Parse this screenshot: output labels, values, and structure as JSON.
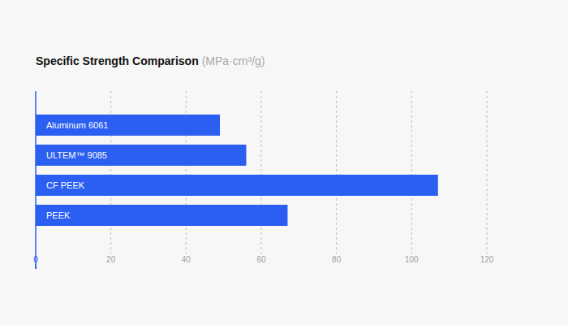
{
  "chart_data": {
    "type": "bar",
    "title": "Specific Strength Comparison",
    "subtitle": "(MPa·cm³/g)",
    "categories": [
      "Aluminum 6061",
      "ULTEM™ 9085",
      "CF PEEK",
      "PEEK"
    ],
    "values": [
      49,
      56,
      107,
      67
    ],
    "color": "#2a5ff2",
    "orientation": "horizontal",
    "xlim": [
      0,
      120
    ],
    "xticks": [
      0,
      20,
      40,
      60,
      80,
      100,
      120
    ],
    "grid": true
  }
}
